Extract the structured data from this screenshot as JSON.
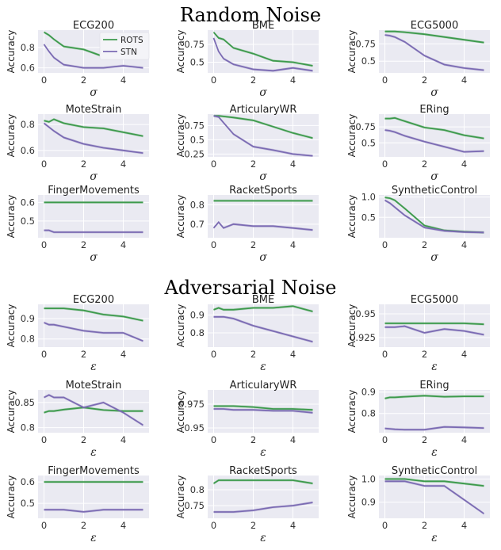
{
  "section_titles": [
    "Random Noise",
    "Adversarial Noise"
  ],
  "legend": {
    "rots": "ROTS",
    "stn": "STN"
  },
  "colors": {
    "rots": "#3d9a4c",
    "stn": "#7b6bb3",
    "panel_bg": "#eaeaf2",
    "grid": "#ffffff"
  },
  "chart_data": [
    {
      "type": "line",
      "title": "ECG200",
      "xlabel": "σ",
      "ylabel": "Accuracy",
      "x": [
        0,
        0.25,
        0.5,
        1,
        2,
        3,
        4,
        5
      ],
      "xticks": [
        0,
        2,
        4
      ],
      "ylim": [
        0.55,
        0.97
      ],
      "yticks": [
        0.6,
        0.8
      ],
      "series": [
        {
          "name": "ROTS",
          "values": [
            0.95,
            0.92,
            0.88,
            0.81,
            0.78,
            0.71,
            0.71,
            0.71
          ]
        },
        {
          "name": "STN",
          "values": [
            0.83,
            0.76,
            0.7,
            0.63,
            0.6,
            0.6,
            0.62,
            0.6
          ]
        }
      ]
    },
    {
      "type": "line",
      "title": "BME",
      "xlabel": "σ",
      "ylabel": "Accuracy",
      "x": [
        0,
        0.25,
        0.5,
        1,
        2,
        3,
        4,
        5
      ],
      "xticks": [
        0,
        2,
        4
      ],
      "ylim": [
        0.35,
        0.95
      ],
      "yticks": [
        0.5,
        0.75
      ],
      "series": [
        {
          "name": "ROTS",
          "values": [
            0.92,
            0.84,
            0.82,
            0.7,
            0.62,
            0.52,
            0.5,
            0.45
          ]
        },
        {
          "name": "STN",
          "values": [
            0.84,
            0.65,
            0.55,
            0.47,
            0.4,
            0.38,
            0.42,
            0.38
          ]
        }
      ]
    },
    {
      "type": "line",
      "title": "ECG5000",
      "xlabel": "σ",
      "ylabel": "Accuracy",
      "x": [
        0,
        0.25,
        0.5,
        1,
        2,
        3,
        4,
        5
      ],
      "xticks": [
        0,
        2,
        4
      ],
      "ylim": [
        0.33,
        0.95
      ],
      "yticks": [
        0.5,
        0.75
      ],
      "series": [
        {
          "name": "ROTS",
          "values": [
            0.93,
            0.93,
            0.93,
            0.92,
            0.89,
            0.85,
            0.81,
            0.77
          ]
        },
        {
          "name": "STN",
          "values": [
            0.88,
            0.87,
            0.85,
            0.78,
            0.58,
            0.45,
            0.4,
            0.37
          ]
        }
      ]
    },
    {
      "type": "line",
      "title": "MoteStrain",
      "xlabel": "σ",
      "ylabel": "Accuracy",
      "x": [
        0,
        0.25,
        0.5,
        1,
        2,
        3,
        4,
        5
      ],
      "xticks": [
        0,
        2,
        4
      ],
      "ylim": [
        0.55,
        0.88
      ],
      "yticks": [
        0.6,
        0.8
      ],
      "series": [
        {
          "name": "ROTS",
          "values": [
            0.83,
            0.82,
            0.84,
            0.81,
            0.78,
            0.77,
            0.74,
            0.71
          ]
        },
        {
          "name": "STN",
          "values": [
            0.81,
            0.78,
            0.75,
            0.7,
            0.65,
            0.62,
            0.6,
            0.58
          ]
        }
      ]
    },
    {
      "type": "line",
      "title": "ArticularyWR",
      "xlabel": "σ",
      "ylabel": "Accuracy",
      "x": [
        0,
        0.25,
        0.5,
        1,
        2,
        3,
        4,
        5
      ],
      "xticks": [
        0,
        2,
        4
      ],
      "ylim": [
        0.2,
        0.95
      ],
      "yticks": [
        0.25,
        0.5,
        0.75
      ],
      "series": [
        {
          "name": "ROTS",
          "values": [
            0.92,
            0.92,
            0.91,
            0.89,
            0.84,
            0.73,
            0.62,
            0.53
          ]
        },
        {
          "name": "STN",
          "values": [
            0.92,
            0.9,
            0.8,
            0.6,
            0.38,
            0.32,
            0.25,
            0.22
          ]
        }
      ]
    },
    {
      "type": "line",
      "title": "ERing",
      "xlabel": "σ",
      "ylabel": "Accuracy",
      "x": [
        0,
        0.25,
        0.5,
        1,
        2,
        3,
        4,
        5
      ],
      "xticks": [
        0,
        2,
        4
      ],
      "ylim": [
        0.28,
        0.95
      ],
      "yticks": [
        0.5,
        0.75
      ],
      "series": [
        {
          "name": "ROTS",
          "values": [
            0.88,
            0.88,
            0.89,
            0.84,
            0.74,
            0.7,
            0.62,
            0.57
          ]
        },
        {
          "name": "STN",
          "values": [
            0.7,
            0.69,
            0.67,
            0.61,
            0.52,
            0.44,
            0.36,
            0.37
          ]
        }
      ]
    },
    {
      "type": "line",
      "title": "FingerMovements",
      "xlabel": "σ",
      "ylabel": "Accuracy",
      "x": [
        0,
        0.25,
        0.5,
        1,
        2,
        3,
        4,
        5
      ],
      "xticks": [
        0,
        2,
        4
      ],
      "ylim": [
        0.41,
        0.64
      ],
      "yticks": [
        0.5,
        0.6
      ],
      "series": [
        {
          "name": "ROTS",
          "values": [
            0.6,
            0.6,
            0.6,
            0.6,
            0.6,
            0.6,
            0.6,
            0.6
          ]
        },
        {
          "name": "STN",
          "values": [
            0.45,
            0.45,
            0.44,
            0.44,
            0.44,
            0.44,
            0.44,
            0.44
          ]
        }
      ]
    },
    {
      "type": "line",
      "title": "RacketSports",
      "xlabel": "σ",
      "ylabel": "Accuracy",
      "x": [
        0,
        0.25,
        0.5,
        1,
        2,
        3,
        4,
        5
      ],
      "xticks": [
        0,
        2,
        4
      ],
      "ylim": [
        0.63,
        0.85
      ],
      "yticks": [
        0.7,
        0.8
      ],
      "series": [
        {
          "name": "ROTS",
          "values": [
            0.82,
            0.82,
            0.82,
            0.82,
            0.82,
            0.82,
            0.82,
            0.82
          ]
        },
        {
          "name": "STN",
          "values": [
            0.68,
            0.71,
            0.68,
            0.7,
            0.69,
            0.69,
            0.68,
            0.67
          ]
        }
      ]
    },
    {
      "type": "line",
      "title": "SyntheticControl",
      "xlabel": "σ",
      "ylabel": "Accuracy",
      "x": [
        0,
        0.25,
        0.5,
        1,
        2,
        3,
        4,
        5
      ],
      "xticks": [
        0,
        2,
        4
      ],
      "ylim": [
        0,
        1.05
      ],
      "yticks": [
        0.5,
        1.0
      ],
      "series": [
        {
          "name": "ROTS",
          "values": [
            0.99,
            0.97,
            0.92,
            0.72,
            0.3,
            0.18,
            0.15,
            0.13
          ]
        },
        {
          "name": "STN",
          "values": [
            0.92,
            0.85,
            0.75,
            0.55,
            0.25,
            0.17,
            0.14,
            0.13
          ]
        }
      ]
    },
    {
      "type": "line",
      "title": "ECG200",
      "xlabel": "ε",
      "ylabel": "Accuracy",
      "x": [
        0,
        0.25,
        0.5,
        1,
        2,
        3,
        4,
        5
      ],
      "xticks": [
        0,
        2,
        4
      ],
      "ylim": [
        0.76,
        0.97
      ],
      "yticks": [
        0.8,
        0.9
      ],
      "series": [
        {
          "name": "ROTS",
          "values": [
            0.95,
            0.95,
            0.95,
            0.95,
            0.94,
            0.92,
            0.91,
            0.89
          ]
        },
        {
          "name": "STN",
          "values": [
            0.88,
            0.87,
            0.87,
            0.86,
            0.84,
            0.83,
            0.83,
            0.79
          ]
        }
      ]
    },
    {
      "type": "line",
      "title": "BME",
      "xlabel": "ε",
      "ylabel": "Accuracy",
      "x": [
        0,
        0.25,
        0.5,
        1,
        2,
        3,
        4,
        5
      ],
      "xticks": [
        0,
        2,
        4
      ],
      "ylim": [
        0.72,
        0.96
      ],
      "yticks": [
        0.8,
        0.9
      ],
      "series": [
        {
          "name": "ROTS",
          "values": [
            0.93,
            0.94,
            0.93,
            0.93,
            0.94,
            0.94,
            0.95,
            0.92
          ]
        },
        {
          "name": "STN",
          "values": [
            0.89,
            0.89,
            0.89,
            0.88,
            0.84,
            0.81,
            0.78,
            0.75
          ]
        }
      ]
    },
    {
      "type": "line",
      "title": "ECG5000",
      "xlabel": "ε",
      "ylabel": "Accuracy",
      "x": [
        0,
        0.25,
        0.5,
        1,
        2,
        3,
        4,
        5
      ],
      "xticks": [
        0,
        2,
        4
      ],
      "ylim": [
        0.915,
        0.96
      ],
      "yticks": [
        0.925,
        0.95
      ],
      "series": [
        {
          "name": "ROTS",
          "values": [
            0.94,
            0.94,
            0.94,
            0.94,
            0.94,
            0.94,
            0.94,
            0.939
          ]
        },
        {
          "name": "STN",
          "values": [
            0.936,
            0.936,
            0.936,
            0.937,
            0.93,
            0.934,
            0.932,
            0.928
          ]
        }
      ]
    },
    {
      "type": "line",
      "title": "MoteStrain",
      "xlabel": "ε",
      "ylabel": "Accuracy",
      "x": [
        0,
        0.25,
        0.5,
        1,
        2,
        3,
        4,
        5
      ],
      "xticks": [
        0,
        2,
        4
      ],
      "ylim": [
        0.79,
        0.875
      ],
      "yticks": [
        0.8,
        0.85
      ],
      "series": [
        {
          "name": "ROTS",
          "values": [
            0.83,
            0.833,
            0.833,
            0.836,
            0.84,
            0.835,
            0.833,
            0.833
          ]
        },
        {
          "name": "STN",
          "values": [
            0.86,
            0.865,
            0.86,
            0.86,
            0.84,
            0.85,
            0.83,
            0.805
          ]
        }
      ]
    },
    {
      "type": "line",
      "title": "ArticularyWR",
      "xlabel": "ε",
      "ylabel": "Accuracy",
      "x": [
        0,
        0.25,
        0.5,
        1,
        2,
        3,
        4,
        5
      ],
      "xticks": [
        0,
        2,
        4
      ],
      "ylim": [
        0.945,
        0.99
      ],
      "yticks": [
        0.95,
        0.975
      ],
      "series": [
        {
          "name": "ROTS",
          "values": [
            0.973,
            0.973,
            0.973,
            0.973,
            0.972,
            0.97,
            0.97,
            0.969
          ]
        },
        {
          "name": "STN",
          "values": [
            0.97,
            0.97,
            0.97,
            0.969,
            0.969,
            0.968,
            0.968,
            0.966
          ]
        }
      ]
    },
    {
      "type": "line",
      "title": "ERing",
      "xlabel": "ε",
      "ylabel": "Accuracy",
      "x": [
        0,
        0.25,
        0.5,
        1,
        2,
        3,
        4,
        5
      ],
      "xticks": [
        0,
        2,
        4
      ],
      "ylim": [
        0.71,
        0.91
      ],
      "yticks": [
        0.8,
        0.9
      ],
      "series": [
        {
          "name": "ROTS",
          "values": [
            0.87,
            0.875,
            0.875,
            0.878,
            0.883,
            0.878,
            0.88,
            0.88
          ]
        },
        {
          "name": "STN",
          "values": [
            0.73,
            0.728,
            0.726,
            0.724,
            0.724,
            0.737,
            0.735,
            0.732
          ]
        }
      ]
    },
    {
      "type": "line",
      "title": "FingerMovements",
      "xlabel": "ε",
      "ylabel": "Accuracy",
      "x": [
        0,
        0.25,
        0.5,
        1,
        2,
        3,
        4,
        5
      ],
      "xticks": [
        0,
        2,
        4
      ],
      "ylim": [
        0.43,
        0.63
      ],
      "yticks": [
        0.5,
        0.6
      ],
      "series": [
        {
          "name": "ROTS",
          "values": [
            0.6,
            0.6,
            0.6,
            0.6,
            0.6,
            0.6,
            0.6,
            0.6
          ]
        },
        {
          "name": "STN",
          "values": [
            0.47,
            0.47,
            0.47,
            0.47,
            0.46,
            0.47,
            0.47,
            0.47
          ]
        }
      ]
    },
    {
      "type": "line",
      "title": "RacketSports",
      "xlabel": "ε",
      "ylabel": "Accuracy",
      "x": [
        0,
        0.25,
        0.5,
        1,
        2,
        3,
        4,
        5
      ],
      "xticks": [
        0,
        2,
        4
      ],
      "ylim": [
        0.71,
        0.845
      ],
      "yticks": [
        0.75,
        0.8
      ],
      "series": [
        {
          "name": "ROTS",
          "values": [
            0.82,
            0.83,
            0.83,
            0.83,
            0.83,
            0.83,
            0.83,
            0.82
          ]
        },
        {
          "name": "STN",
          "values": [
            0.73,
            0.73,
            0.73,
            0.73,
            0.735,
            0.745,
            0.75,
            0.76
          ]
        }
      ]
    },
    {
      "type": "line",
      "title": "SyntheticControl",
      "xlabel": "ε",
      "ylabel": "Accuracy",
      "x": [
        0,
        0.25,
        0.5,
        1,
        2,
        3,
        4,
        5
      ],
      "xticks": [
        0,
        2,
        4
      ],
      "ylim": [
        0.83,
        1.015
      ],
      "yticks": [
        0.9,
        1.0
      ],
      "series": [
        {
          "name": "ROTS",
          "values": [
            1.0,
            1.0,
            1.0,
            1.0,
            0.99,
            0.99,
            0.98,
            0.97
          ]
        },
        {
          "name": "STN",
          "values": [
            0.99,
            0.99,
            0.99,
            0.99,
            0.97,
            0.97,
            0.91,
            0.85
          ]
        }
      ]
    }
  ]
}
